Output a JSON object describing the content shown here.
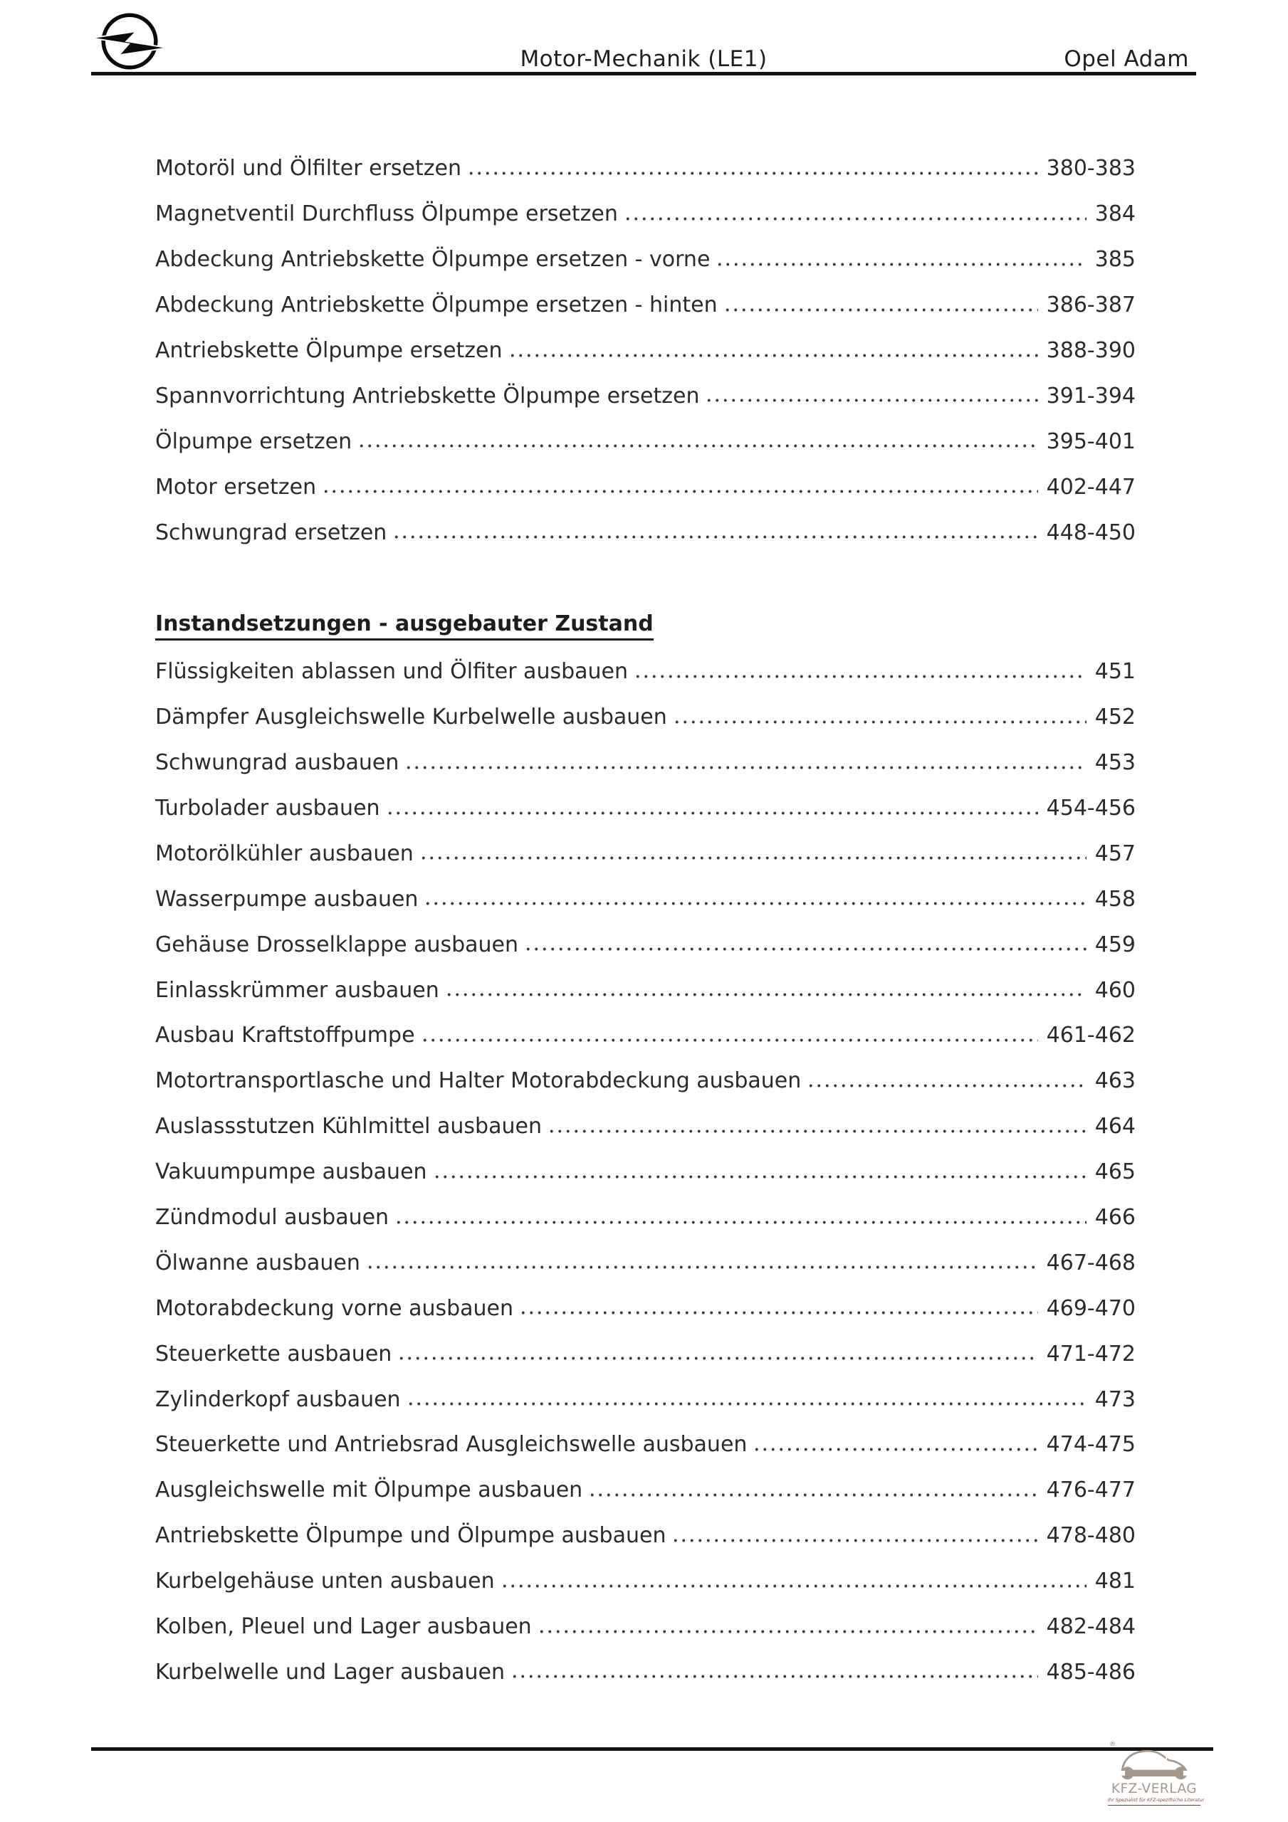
{
  "header": {
    "center_title": "Motor-Mechanik (LE1)",
    "right_title": "Opel Adam",
    "logo_icon": "opel-blitz"
  },
  "toc": {
    "sections": [
      {
        "entries": [
          {
            "title": "Motoröl und Ölfilter ersetzen",
            "pages": "380-383"
          },
          {
            "title": "Magnetventil Durchfluss Ölpumpe ersetzen",
            "pages": "384"
          },
          {
            "title": "Abdeckung Antriebskette Ölpumpe ersetzen - vorne",
            "pages": "385"
          },
          {
            "title": "Abdeckung Antriebskette Ölpumpe ersetzen - hinten",
            "pages": "386-387"
          },
          {
            "title": "Antriebskette Ölpumpe ersetzen",
            "pages": "388-390"
          },
          {
            "title": "Spannvorrichtung Antriebskette Ölpumpe ersetzen",
            "pages": "391-394"
          },
          {
            "title": "Ölpumpe ersetzen",
            "pages": "395-401"
          },
          {
            "title": "Motor ersetzen",
            "pages": "402-447"
          },
          {
            "title": "Schwungrad ersetzen",
            "pages": "448-450"
          }
        ]
      },
      {
        "heading": "Instandsetzungen - ausgebauter Zustand",
        "entries": [
          {
            "title": "Flüssigkeiten ablassen und Ölfiter ausbauen",
            "pages": "451"
          },
          {
            "title": "Dämpfer Ausgleichswelle Kurbelwelle ausbauen",
            "pages": "452"
          },
          {
            "title": "Schwungrad ausbauen",
            "pages": "453"
          },
          {
            "title": "Turbolader ausbauen",
            "pages": "454-456"
          },
          {
            "title": "Motorölkühler ausbauen",
            "pages": "457"
          },
          {
            "title": "Wasserpumpe ausbauen",
            "pages": "458"
          },
          {
            "title": "Gehäuse Drosselklappe ausbauen",
            "pages": "459"
          },
          {
            "title": "Einlasskrümmer ausbauen",
            "pages": "460"
          },
          {
            "title": "Ausbau Kraftstoffpumpe",
            "pages": "461-462"
          },
          {
            "title": "Motortransportlasche und Halter Motorabdeckung ausbauen",
            "pages": "463"
          },
          {
            "title": "Auslassstutzen Kühlmittel ausbauen",
            "pages": "464"
          },
          {
            "title": "Vakuumpumpe ausbauen",
            "pages": "465"
          },
          {
            "title": "Zündmodul ausbauen",
            "pages": "466"
          },
          {
            "title": "Ölwanne ausbauen",
            "pages": "467-468"
          },
          {
            "title": "Motorabdeckung vorne ausbauen",
            "pages": "469-470"
          },
          {
            "title": "Steuerkette ausbauen",
            "pages": "471-472"
          },
          {
            "title": "Zylinderkopf ausbauen",
            "pages": "473"
          },
          {
            "title": "Steuerkette und Antriebsrad Ausgleichswelle ausbauen",
            "pages": "474-475"
          },
          {
            "title": "Ausgleichswelle mit Ölpumpe ausbauen",
            "pages": "476-477"
          },
          {
            "title": "Antriebskette Ölpumpe und Ölpumpe ausbauen",
            "pages": "478-480"
          },
          {
            "title": "Kurbelgehäuse unten ausbauen",
            "pages": "481"
          },
          {
            "title": "Kolben, Pleuel und Lager ausbauen",
            "pages": "482-484"
          },
          {
            "title": "Kurbelwelle und Lager ausbauen",
            "pages": "485-486"
          }
        ]
      }
    ]
  },
  "footer": {
    "publisher": "KFZ-VERLAG",
    "tagline": "Ihr Spezialist für KFZ-spezifische Literatur",
    "registered_mark": "®",
    "logo_icon": "car-wrench",
    "logo_color": "#a5988a",
    "tagline_color": "#8f4a3c"
  }
}
